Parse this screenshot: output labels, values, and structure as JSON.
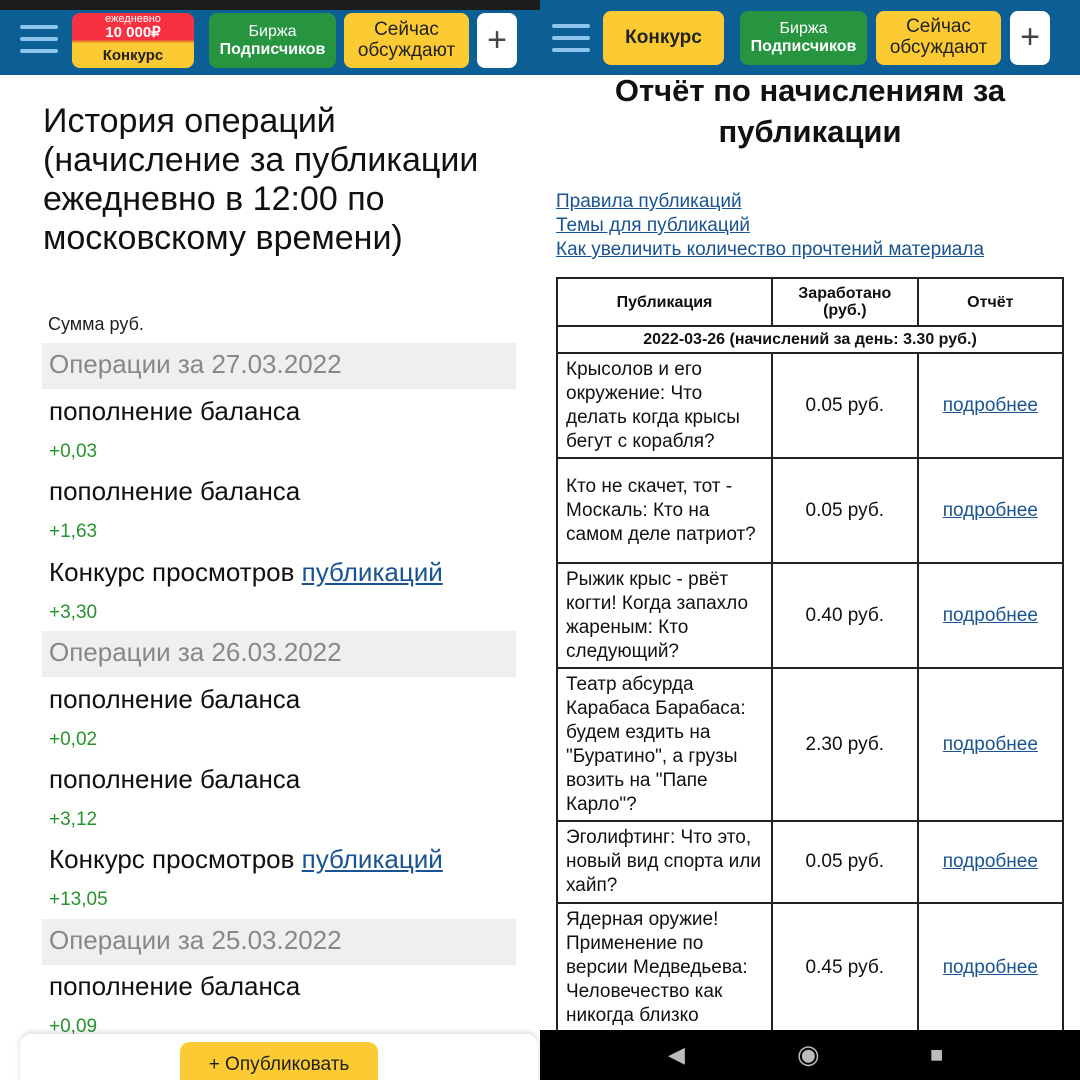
{
  "left": {
    "header": {
      "contest_top": "ежедневно",
      "contest_amount": "10 000₽",
      "contest_label": "Конкурс",
      "exchange_line1": "Биржа",
      "exchange_line2": "Подписчиков",
      "discuss_line1": "Сейчас",
      "discuss_line2": "обсуждают",
      "plus": "+"
    },
    "title": "История операций (начисление за публикации ежедневно в 12:00 по московскому времени)",
    "sum_label": "Сумма руб.",
    "groups": [
      {
        "date": "Операции за 27.03.2022",
        "items": [
          {
            "title": "пополнение баланса",
            "amount": "+0,03"
          },
          {
            "title": "пополнение баланса",
            "amount": "+1,63"
          },
          {
            "title": "Конкурс просмотров ",
            "link": "публикаций",
            "amount": "+3,30"
          }
        ]
      },
      {
        "date": "Операции за 26.03.2022",
        "items": [
          {
            "title": "пополнение баланса",
            "amount": "+0,02"
          },
          {
            "title": "пополнение баланса",
            "amount": "+3,12"
          },
          {
            "title": "Конкурс просмотров ",
            "link": "публикаций",
            "amount": "+13,05"
          }
        ]
      },
      {
        "date": "Операции за 25.03.2022",
        "items": [
          {
            "title": "пополнение баланса",
            "amount": "+0,09"
          }
        ]
      }
    ],
    "publish_button": "+ Опубликовать"
  },
  "right": {
    "header": {
      "contest_label": "Конкурс",
      "exchange_line1": "Биржа",
      "exchange_line2": "Подписчиков",
      "discuss_line1": "Сейчас",
      "discuss_line2": "обсуждают",
      "plus": "+"
    },
    "title": "Отчёт по начислениям за публикации",
    "links": [
      "Правила публикаций",
      "Темы для публикаций",
      "Как увеличить количество прочтений материала"
    ],
    "table": {
      "headers": [
        "Публикация",
        "Заработано (руб.)",
        "Отчёт"
      ],
      "date_row": "2022-03-26 (начислений за день: 3.30 руб.)",
      "rows": [
        {
          "title": "Крысолов и его окружение: Что делать когда крысы бегут с корабля?",
          "earned": "0.05 руб.",
          "link": "подробнее"
        },
        {
          "title": "Кто не скачет, тот - Москаль: Кто на самом деле патриот?",
          "earned": "0.05 руб.",
          "link": "подробнее"
        },
        {
          "title": "Рыжик крыс - рвёт когти! Когда запахло жареным: Кто следующий?",
          "earned": "0.40 руб.",
          "link": "подробнее"
        },
        {
          "title": "Театр абсурда Карабаса Барабаса: будем ездить на \"Буратино\", а грузы возить на \"Папе Карло\"?",
          "earned": "2.30 руб.",
          "link": "подробнее"
        },
        {
          "title": "Эголифтинг: Что это, новый вид спорта или хайп?",
          "earned": "0.05 руб.",
          "link": "подробнее"
        },
        {
          "title": "Ядерная оружие! Применение по версии Медведьева: Человечество как никогда близко",
          "earned": "0.45 руб.",
          "link": "подробнее"
        }
      ]
    },
    "nav": {
      "back": "◀",
      "home": "◉",
      "recents": "■"
    }
  }
}
